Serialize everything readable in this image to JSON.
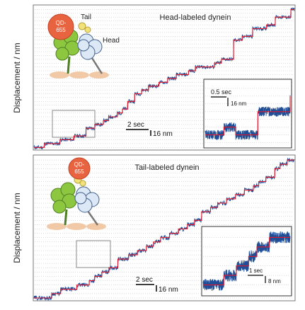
{
  "chart_data": [
    {
      "type": "line",
      "title": "Head-labeled dynein",
      "ylabel": "Displacement / nm",
      "grid": true,
      "colors": {
        "trace": "#1f4e96",
        "fit": "#e0182d",
        "grid": "#b7b7b7"
      },
      "x": [
        0.0,
        0.6,
        1.5,
        2.3,
        3.0,
        3.5,
        4.0,
        4.3,
        4.8,
        5.1,
        5.4,
        5.8,
        6.2,
        6.6,
        7.2,
        7.7,
        8.2,
        8.9,
        9.3,
        10.4,
        10.8,
        11.5,
        12.0,
        12.6,
        13.4,
        13.9,
        14.8
      ],
      "steps_nm": [
        0,
        8,
        16,
        24,
        40,
        48,
        56,
        64,
        72,
        80,
        96,
        112,
        120,
        128,
        136,
        144,
        152,
        160,
        168,
        176,
        184,
        224,
        232,
        248,
        256,
        272,
        288
      ],
      "xlim": [
        0,
        15
      ],
      "ylim": [
        -4,
        296
      ],
      "scale_bars": {
        "time_label": "2 sec",
        "time_value": 2,
        "displacement_label": "16 nm",
        "displacement_value": 16
      },
      "molecule": {
        "qdot_label": "QD-\n655",
        "tail_label": "Tail",
        "head_label": "Head"
      },
      "inset": {
        "time_label": "0.5 sec",
        "displacement_label": "16 nm",
        "x": [
          0.0,
          0.55,
          0.9,
          1.55,
          2.5
        ],
        "steps_nm": [
          0,
          8,
          0,
          24,
          40
        ],
        "xlim": [
          0,
          2.5
        ],
        "ylim": [
          -12,
          56
        ]
      },
      "zoom_box": {
        "x_range": [
          1.1,
          3.4
        ],
        "y_range": [
          0,
          72
        ]
      }
    },
    {
      "type": "line",
      "title": "Tail-labeled dynein",
      "ylabel": "Displacement / nm",
      "grid": true,
      "colors": {
        "trace": "#1f4e96",
        "fit": "#e0182d",
        "grid": "#b7b7b7"
      },
      "x": [
        0.0,
        1.0,
        1.5,
        2.4,
        3.1,
        3.4,
        3.8,
        4.2,
        4.7,
        5.3,
        5.8,
        6.3,
        6.7,
        7.1,
        7.6,
        8.1,
        8.6,
        9.0,
        9.4,
        9.9,
        10.3,
        10.8,
        11.3,
        11.8,
        12.3,
        12.6,
        13.0,
        13.5,
        13.8,
        14.2
      ],
      "steps_nm": [
        0,
        8,
        16,
        24,
        32,
        40,
        48,
        56,
        72,
        80,
        88,
        96,
        104,
        112,
        120,
        128,
        136,
        144,
        160,
        168,
        176,
        184,
        192,
        200,
        208,
        216,
        224,
        240,
        248,
        256
      ],
      "xlim": [
        0,
        14.6
      ],
      "ylim": [
        -4,
        264
      ],
      "scale_bars": {
        "time_label": "2 sec",
        "time_value": 2,
        "displacement_label": "16 nm",
        "displacement_value": 16
      },
      "molecule": {
        "qdot_label": "QD-\n655"
      },
      "inset": {
        "time_label": "1 sec",
        "displacement_label": "8 nm",
        "x": [
          0.0,
          1.0,
          1.6,
          2.2,
          2.6,
          3.2
        ],
        "steps_nm": [
          0,
          8,
          16,
          24,
          32,
          40
        ],
        "xlim": [
          0,
          4.2
        ],
        "ylim": [
          -8,
          48
        ]
      },
      "zoom_box": {
        "x_range": [
          3.1,
          5.3
        ],
        "y_range": [
          40,
          80
        ]
      }
    }
  ]
}
